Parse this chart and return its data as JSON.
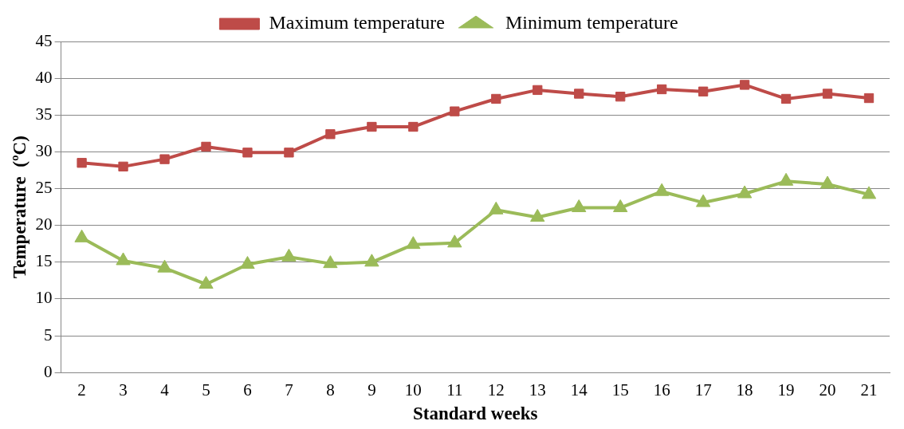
{
  "chart_data": {
    "type": "line",
    "xlabel": "Standard weeks",
    "ylabel": "Temperature  (ºC)",
    "categories": [
      "2",
      "3",
      "4",
      "5",
      "6",
      "7",
      "8",
      "9",
      "10",
      "11",
      "12",
      "13",
      "14",
      "15",
      "16",
      "17",
      "18",
      "19",
      "20",
      "21"
    ],
    "series": [
      {
        "name": "Maximum temperature",
        "color": "#be4b48",
        "marker": "square",
        "values": [
          28.5,
          28.0,
          29.0,
          30.7,
          29.9,
          29.9,
          32.4,
          33.4,
          33.4,
          35.5,
          37.2,
          38.4,
          37.9,
          37.5,
          38.5,
          38.2,
          39.1,
          37.2,
          37.9,
          37.3
        ]
      },
      {
        "name": "Minimum temperature",
        "color": "#9bbb59",
        "marker": "triangle",
        "values": [
          18.3,
          15.2,
          14.2,
          12.0,
          14.7,
          15.7,
          14.8,
          15.0,
          17.4,
          17.6,
          22.1,
          21.1,
          22.4,
          22.4,
          24.6,
          23.1,
          24.3,
          26.0,
          25.6,
          24.2
        ]
      }
    ],
    "ylim": [
      0,
      45
    ],
    "yticks": [
      0,
      5,
      10,
      15,
      20,
      25,
      30,
      35,
      40,
      45
    ],
    "grid": "y",
    "legend": "top",
    "line_style": "solid"
  }
}
